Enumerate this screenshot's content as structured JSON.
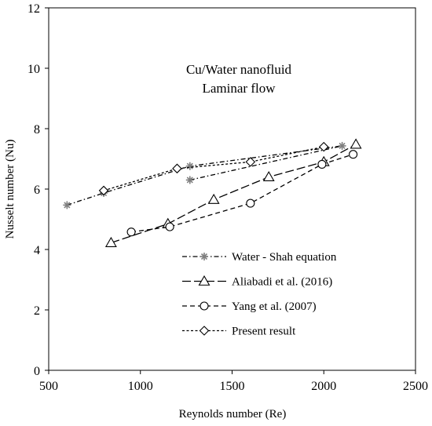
{
  "chart_data": {
    "type": "line",
    "xlabel": "Reynolds number (Re)",
    "ylabel": "Nusselt number (Nu)",
    "xlim": [
      500,
      2500
    ],
    "ylim": [
      0,
      12
    ],
    "xticks": [
      "500",
      "1000",
      "1500",
      "2000",
      "2500"
    ],
    "yticks": [
      "0",
      "2",
      "4",
      "6",
      "8",
      "10",
      "12"
    ],
    "grid": false,
    "legend_position": "bottom-right",
    "annotations": [
      "Cu/Water nanofluid",
      "Laminar flow"
    ],
    "series": [
      {
        "name": "Water - Shah equation",
        "marker": "asterisk",
        "dash": "dash-dot",
        "color": "#000000",
        "marker_color": "#7f7f7f",
        "x": [
          600,
          800,
          1270,
          2100,
          1270,
          2100
        ],
        "y": [
          5.47,
          5.87,
          6.76,
          7.43,
          6.3,
          7.43
        ],
        "note_points": "two branches sharing the rightmost point"
      },
      {
        "name": "Aliabadi et al. (2016)",
        "marker": "triangle",
        "dash": "long-dash",
        "color": "#000000",
        "x": [
          840,
          1150,
          1400,
          1700,
          2000,
          2175
        ],
        "y": [
          4.22,
          4.85,
          5.65,
          6.4,
          6.9,
          7.48
        ]
      },
      {
        "name": "Yang et al. (2007)",
        "marker": "circle",
        "dash": "dash",
        "color": "#000000",
        "x": [
          950,
          1160,
          1600,
          1990,
          2160
        ],
        "y": [
          4.58,
          4.75,
          5.53,
          6.82,
          7.15
        ]
      },
      {
        "name": "Present result",
        "marker": "diamond",
        "dash": "short-dash",
        "color": "#000000",
        "x": [
          800,
          1200,
          1600,
          2000
        ],
        "y": [
          5.95,
          6.68,
          6.9,
          7.4
        ]
      }
    ]
  }
}
